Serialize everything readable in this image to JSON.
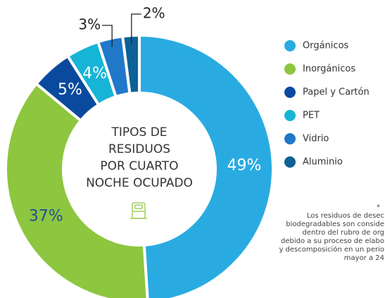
{
  "chart_data": {
    "type": "pie",
    "title_lines": [
      "TIPOS DE",
      "RESIDUOS",
      "POR CUARTO",
      "NOCHE OCUPADO"
    ],
    "categories": [
      "Orgánicos",
      "Inorgánicos",
      "Papel y Cartón",
      "PET",
      "Vidrio",
      "Aluminio"
    ],
    "values": [
      49,
      37,
      5,
      4,
      3,
      2
    ],
    "value_labels": [
      "49%",
      "37%",
      "5%",
      "4%",
      "3%",
      "2%"
    ],
    "colors": [
      "#29abe2",
      "#8dc63f",
      "#0a4a9e",
      "#16b4d6",
      "#1f78c8",
      "#0d6196"
    ],
    "label_colors": [
      "#ffffff",
      "#1f4e9a",
      "#ffffff",
      "#ffffff",
      "#222222",
      "#222222"
    ],
    "footnote": [
      "*",
      "Los residuos de desec",
      "biodegradables son conside",
      "dentro del rubro de org",
      "debido a su proceso de elabo",
      "y descomposición en un perio",
      "mayor a 24"
    ]
  }
}
